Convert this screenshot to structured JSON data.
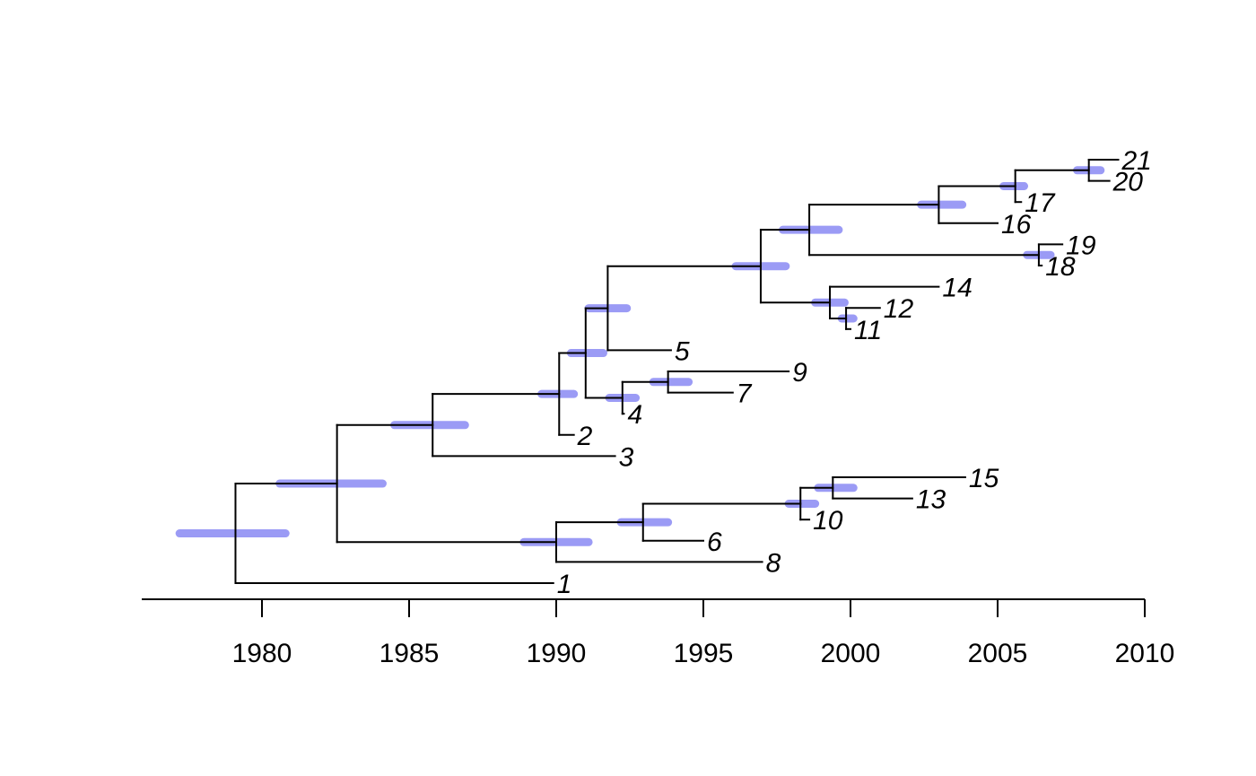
{
  "colors": {
    "branch": "#000000",
    "ci_bar": "#9b9bf5"
  },
  "axis": {
    "domain": [
      1975.9,
      2010
    ],
    "ticks": [
      1980,
      1985,
      1990,
      1995,
      2000,
      2005,
      2010
    ],
    "tick_labels": [
      "1980",
      "1985",
      "1990",
      "1995",
      "2000",
      "2005",
      "2010"
    ]
  },
  "tree": {
    "nodes": [
      {
        "id": "n1",
        "parent": null,
        "date": 1979.1,
        "ci": [
          1977.2,
          1980.8
        ]
      },
      {
        "id": "n2",
        "parent": "n1",
        "date": 1982.55,
        "ci": [
          1980.6,
          1984.1
        ]
      },
      {
        "id": "n3",
        "parent": "n2",
        "date": 1985.8,
        "ci": [
          1984.5,
          1986.9
        ]
      },
      {
        "id": "n4",
        "parent": "n3",
        "date": 1990.1,
        "ci": [
          1989.5,
          1990.6
        ]
      },
      {
        "id": "n5",
        "parent": "n4",
        "date": 1991.0,
        "ci": [
          1990.5,
          1991.6
        ]
      },
      {
        "id": "n6",
        "parent": "n5",
        "date": 1991.75,
        "ci": [
          1991.1,
          1992.4
        ]
      },
      {
        "id": "n7",
        "parent": "n6",
        "date": 1996.95,
        "ci": [
          1996.1,
          1997.8
        ]
      },
      {
        "id": "n8",
        "parent": "n7",
        "date": 1998.6,
        "ci": [
          1997.7,
          1999.6
        ]
      },
      {
        "id": "n9",
        "parent": "n8",
        "date": 2003.0,
        "ci": [
          2002.4,
          2003.8
        ]
      },
      {
        "id": "n10",
        "parent": "n9",
        "date": 2005.6,
        "ci": [
          2005.2,
          2005.9
        ]
      },
      {
        "id": "n11",
        "parent": "n10",
        "date": 2008.1,
        "ci": [
          2007.7,
          2008.5
        ]
      },
      {
        "id": "n12",
        "parent": "n8",
        "date": 2006.4,
        "ci": [
          2006.0,
          2006.8
        ]
      },
      {
        "id": "n13",
        "parent": "n7",
        "date": 1999.3,
        "ci": [
          1998.8,
          1999.8
        ]
      },
      {
        "id": "n14",
        "parent": "n13",
        "date": 1999.85,
        "ci": [
          1999.7,
          2000.1
        ]
      },
      {
        "id": "n15",
        "parent": "n5",
        "date": 1992.25,
        "ci": [
          1991.8,
          1992.7
        ]
      },
      {
        "id": "n16",
        "parent": "n15",
        "date": 1993.8,
        "ci": [
          1993.3,
          1994.5
        ]
      },
      {
        "id": "n17",
        "parent": "n2",
        "date": 1990.0,
        "ci": [
          1988.9,
          1991.1
        ]
      },
      {
        "id": "n18",
        "parent": "n17",
        "date": 1992.95,
        "ci": [
          1992.2,
          1993.8
        ]
      },
      {
        "id": "n19",
        "parent": "n18",
        "date": 1998.3,
        "ci": [
          1997.9,
          1998.8
        ]
      },
      {
        "id": "n20",
        "parent": "n19",
        "date": 1999.4,
        "ci": [
          1998.9,
          2000.1
        ]
      }
    ],
    "tips": [
      {
        "label": "21",
        "parent": "n11",
        "date": 2009.1
      },
      {
        "label": "20",
        "parent": "n11",
        "date": 2008.8
      },
      {
        "label": "17",
        "parent": "n10",
        "date": 2005.8
      },
      {
        "label": "16",
        "parent": "n9",
        "date": 2005.0
      },
      {
        "label": "19",
        "parent": "n12",
        "date": 2007.2
      },
      {
        "label": "18",
        "parent": "n12",
        "date": 2006.5
      },
      {
        "label": "14",
        "parent": "n13",
        "date": 2003.0
      },
      {
        "label": "12",
        "parent": "n14",
        "date": 2001.0
      },
      {
        "label": "11",
        "parent": "n14",
        "date": 2000.0
      },
      {
        "label": "5",
        "parent": "n6",
        "date": 1993.9
      },
      {
        "label": "9",
        "parent": "n16",
        "date": 1997.9
      },
      {
        "label": "7",
        "parent": "n16",
        "date": 1996.0
      },
      {
        "label": "4",
        "parent": "n15",
        "date": 1992.3
      },
      {
        "label": "2",
        "parent": "n4",
        "date": 1990.6
      },
      {
        "label": "3",
        "parent": "n3",
        "date": 1992.0
      },
      {
        "label": "15",
        "parent": "n20",
        "date": 2003.9
      },
      {
        "label": "13",
        "parent": "n20",
        "date": 2002.1
      },
      {
        "label": "10",
        "parent": "n19",
        "date": 1998.6
      },
      {
        "label": "6",
        "parent": "n18",
        "date": 1995.0
      },
      {
        "label": "8",
        "parent": "n17",
        "date": 1997.0
      },
      {
        "label": "1",
        "parent": "n1",
        "date": 1989.9
      }
    ]
  }
}
